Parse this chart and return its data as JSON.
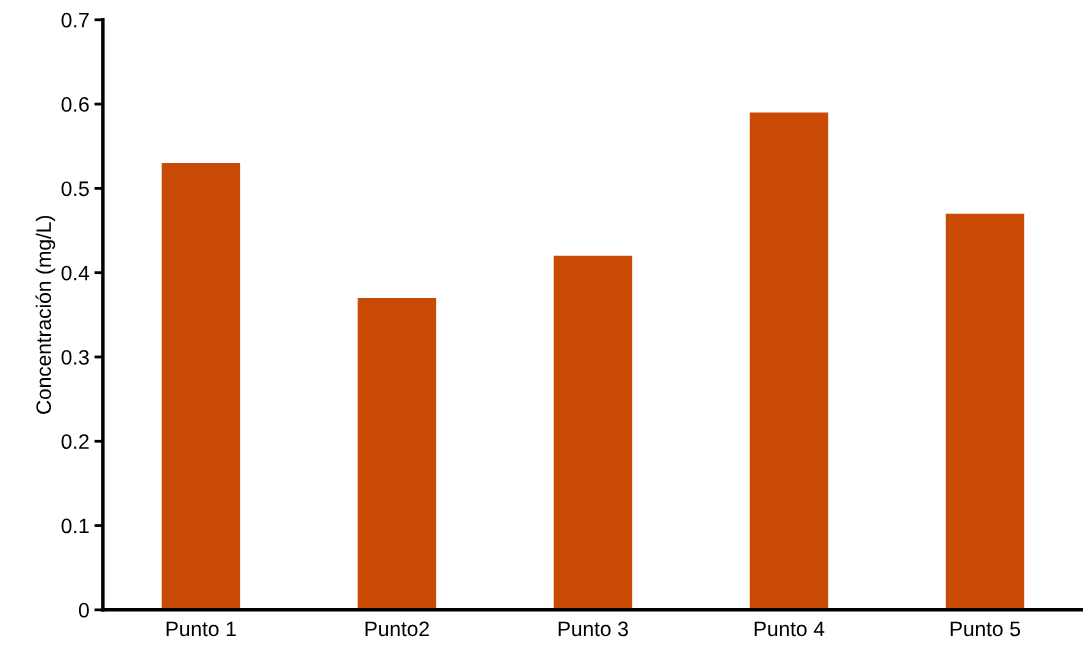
{
  "chart_data": {
    "type": "bar",
    "ylabel": "Concentración (mg/L)",
    "categories": [
      "Punto 1",
      "Punto2",
      "Punto 3",
      "Punto 4",
      "Punto 5"
    ],
    "values": [
      0.53,
      0.37,
      0.42,
      0.59,
      0.47
    ],
    "color": "#c84a04",
    "ylim": [
      0,
      0.7
    ],
    "yticks": [
      {
        "value": 0,
        "label": "0"
      },
      0.1,
      0.2,
      0.3,
      0.4,
      0.5,
      0.6,
      0.7
    ],
    "grid": false,
    "legend": false
  }
}
